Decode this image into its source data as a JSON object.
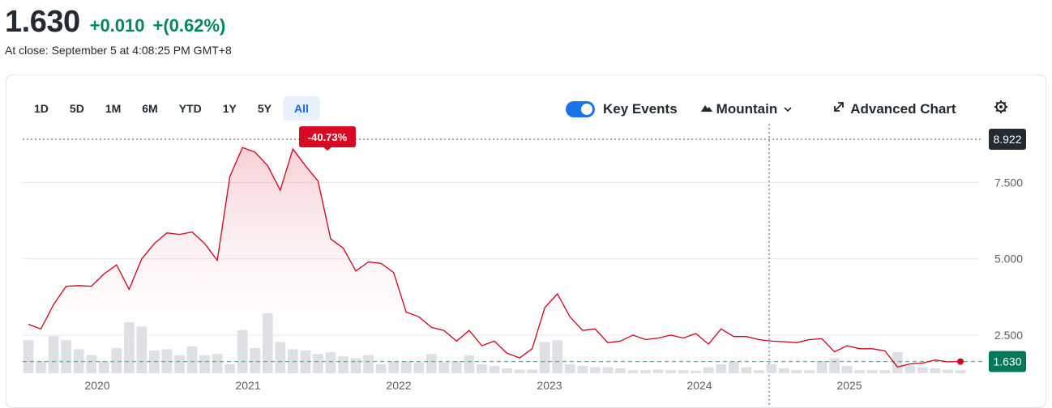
{
  "quote": {
    "price": "1.630",
    "change": "+0.010",
    "change_pct": "+(0.62%)",
    "close_note": "At close: September 5 at 4:08:25 PM GMT+8",
    "up_color": "#00875a"
  },
  "ranges": [
    "1D",
    "5D",
    "1M",
    "6M",
    "YTD",
    "1Y",
    "5Y",
    "All"
  ],
  "active_range": "All",
  "toolbar": {
    "key_events_label": "Key Events",
    "key_events_on": true,
    "chart_type_label": "Mountain",
    "advanced_label": "Advanced Chart",
    "settings_icon": "gear-icon"
  },
  "chart_data": {
    "type": "area",
    "line_color": "#d0021b",
    "x_ticks": [
      "2020",
      "2021",
      "2022",
      "2023",
      "2024",
      "2025"
    ],
    "y_ticks": [
      "7.500",
      "5.000",
      "2.500"
    ],
    "ylim": [
      0,
      8.922
    ],
    "high_label": "8.922",
    "last_label": "1.630",
    "range_change_label": "-40.73%",
    "series": [
      {
        "values": [
          2.85,
          2.7,
          3.5,
          4.1,
          4.12,
          4.1,
          4.5,
          4.8,
          4.0,
          5.0,
          5.5,
          5.85,
          5.8,
          5.88,
          5.5,
          4.95,
          7.7,
          8.65,
          8.5,
          8.05,
          7.25,
          8.6,
          8.05,
          7.55,
          5.65,
          5.35,
          4.6,
          4.9,
          4.85,
          4.55,
          3.25,
          3.1,
          2.75,
          2.65,
          2.3,
          2.65,
          2.15,
          2.3,
          1.9,
          1.75,
          2.05,
          3.4,
          3.85,
          3.1,
          2.65,
          2.7,
          2.25,
          2.3,
          2.5,
          2.35,
          2.4,
          2.5,
          2.4,
          2.55,
          2.2,
          2.7,
          2.45,
          2.45,
          2.35,
          2.3,
          2.28,
          2.25,
          2.35,
          2.38,
          1.95,
          2.15,
          2.05,
          2.05,
          1.98,
          1.45,
          1.55,
          1.58,
          1.68,
          1.62,
          1.63
        ]
      }
    ],
    "volume": [
      0.55,
      0.2,
      0.62,
      0.55,
      0.4,
      0.3,
      0.2,
      0.42,
      0.85,
      0.78,
      0.38,
      0.4,
      0.3,
      0.45,
      0.3,
      0.32,
      0.15,
      0.72,
      0.42,
      1.0,
      0.52,
      0.4,
      0.38,
      0.32,
      0.35,
      0.28,
      0.25,
      0.3,
      0.15,
      0.2,
      0.2,
      0.18,
      0.32,
      0.18,
      0.2,
      0.3,
      0.15,
      0.12,
      0.08,
      0.06,
      0.06,
      0.52,
      0.55,
      0.15,
      0.12,
      0.1,
      0.1,
      0.08,
      0.05,
      0.05,
      0.06,
      0.05,
      0.05,
      0.04,
      0.1,
      0.15,
      0.2,
      0.1,
      0.05,
      0.15,
      0.08,
      0.05,
      0.05,
      0.2,
      0.25,
      0.12,
      0.05,
      0.05,
      0.05,
      0.35,
      0.12,
      0.1,
      0.08,
      0.06,
      0.05
    ]
  }
}
